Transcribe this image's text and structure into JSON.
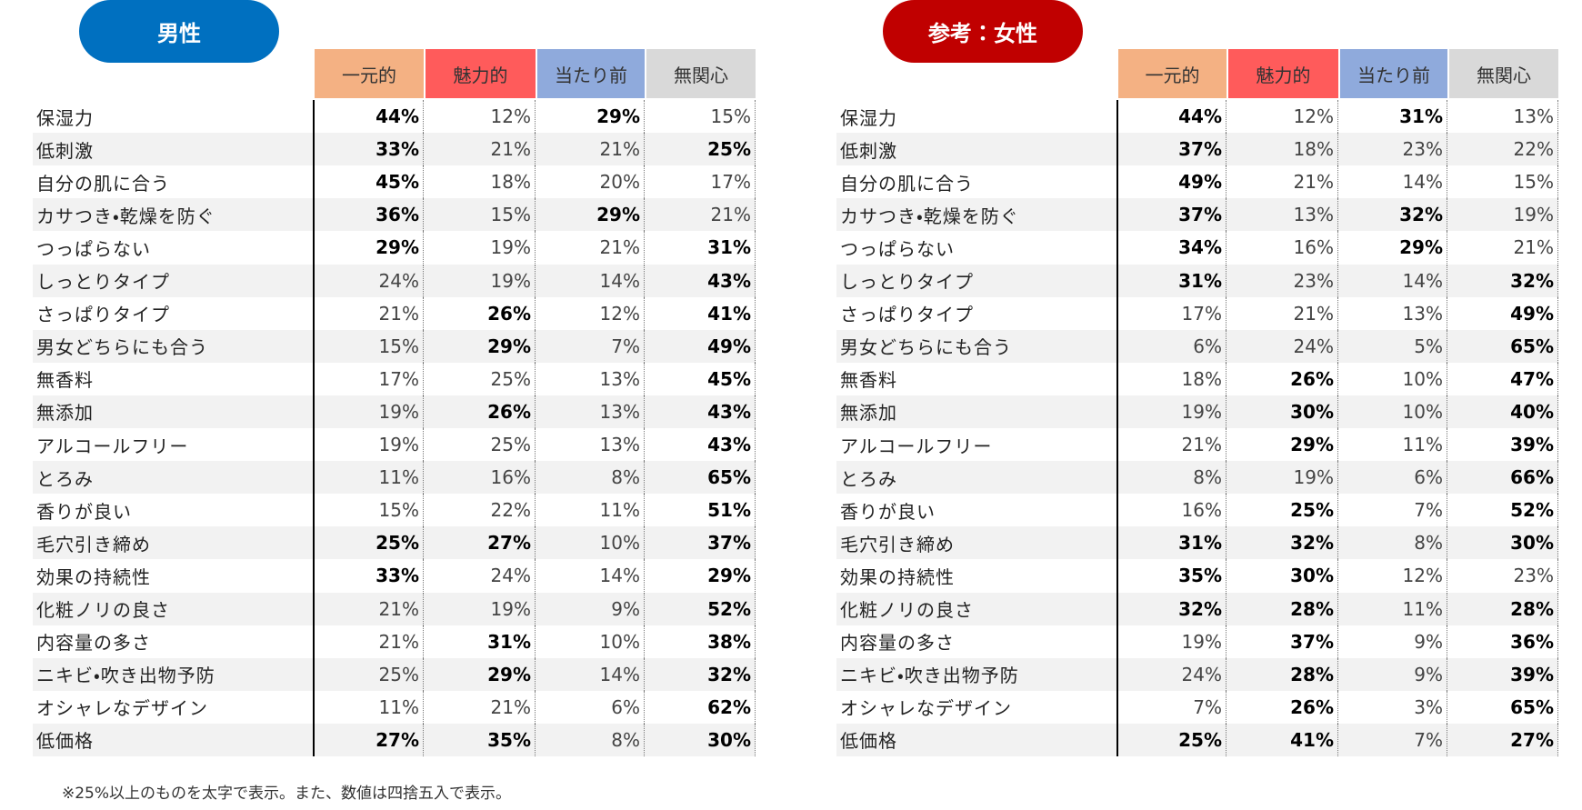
{
  "tables": [
    {
      "title": "男性",
      "title_color": "#0070c0",
      "headers": [
        "一元的",
        "魅力的",
        "当たり前",
        "無関心"
      ],
      "header_colors": [
        "#f4b183",
        "#ff5b5b",
        "#8faadc",
        "#d9d9d9"
      ],
      "rows": [
        {
          "label": "保湿力",
          "cells": [
            "44%",
            "12%",
            "29%",
            "15%"
          ],
          "bold": [
            true,
            false,
            true,
            false
          ]
        },
        {
          "label": "低刺激",
          "cells": [
            "33%",
            "21%",
            "21%",
            "25%"
          ],
          "bold": [
            true,
            false,
            false,
            true
          ]
        },
        {
          "label": "自分の肌に合う",
          "cells": [
            "45%",
            "18%",
            "20%",
            "17%"
          ],
          "bold": [
            true,
            false,
            false,
            false
          ]
        },
        {
          "label": "カサつき・乾燥を防ぐ",
          "cells": [
            "36%",
            "15%",
            "29%",
            "21%"
          ],
          "bold": [
            true,
            false,
            true,
            false
          ]
        },
        {
          "label": "つっぱらない",
          "cells": [
            "29%",
            "19%",
            "21%",
            "31%"
          ],
          "bold": [
            true,
            false,
            false,
            true
          ]
        },
        {
          "label": "しっとりタイプ",
          "cells": [
            "24%",
            "19%",
            "14%",
            "43%"
          ],
          "bold": [
            false,
            false,
            false,
            true
          ]
        },
        {
          "label": "さっぱりタイプ",
          "cells": [
            "21%",
            "26%",
            "12%",
            "41%"
          ],
          "bold": [
            false,
            true,
            false,
            true
          ]
        },
        {
          "label": "男女どちらにも合う",
          "cells": [
            "15%",
            "29%",
            "7%",
            "49%"
          ],
          "bold": [
            false,
            true,
            false,
            true
          ]
        },
        {
          "label": "無香料",
          "cells": [
            "17%",
            "25%",
            "13%",
            "45%"
          ],
          "bold": [
            false,
            false,
            false,
            true
          ]
        },
        {
          "label": "無添加",
          "cells": [
            "19%",
            "26%",
            "13%",
            "43%"
          ],
          "bold": [
            false,
            true,
            false,
            true
          ]
        },
        {
          "label": "アルコールフリー",
          "cells": [
            "19%",
            "25%",
            "13%",
            "43%"
          ],
          "bold": [
            false,
            false,
            false,
            true
          ]
        },
        {
          "label": "とろみ",
          "cells": [
            "11%",
            "16%",
            "8%",
            "65%"
          ],
          "bold": [
            false,
            false,
            false,
            true
          ]
        },
        {
          "label": "香りが良い",
          "cells": [
            "15%",
            "22%",
            "11%",
            "51%"
          ],
          "bold": [
            false,
            false,
            false,
            true
          ]
        },
        {
          "label": "毛穴引き締め",
          "cells": [
            "25%",
            "27%",
            "10%",
            "37%"
          ],
          "bold": [
            true,
            true,
            false,
            true
          ]
        },
        {
          "label": "効果の持続性",
          "cells": [
            "33%",
            "24%",
            "14%",
            "29%"
          ],
          "bold": [
            true,
            false,
            false,
            true
          ]
        },
        {
          "label": "化粧ノリの良さ",
          "cells": [
            "21%",
            "19%",
            "9%",
            "52%"
          ],
          "bold": [
            false,
            false,
            false,
            true
          ]
        },
        {
          "label": "内容量の多さ",
          "cells": [
            "21%",
            "31%",
            "10%",
            "38%"
          ],
          "bold": [
            false,
            true,
            false,
            true
          ]
        },
        {
          "label": "ニキビ・吹き出物予防",
          "cells": [
            "25%",
            "29%",
            "14%",
            "32%"
          ],
          "bold": [
            false,
            true,
            false,
            true
          ]
        },
        {
          "label": "オシャレなデザイン",
          "cells": [
            "11%",
            "21%",
            "6%",
            "62%"
          ],
          "bold": [
            false,
            false,
            false,
            true
          ]
        },
        {
          "label": "低価格",
          "cells": [
            "27%",
            "35%",
            "8%",
            "30%"
          ],
          "bold": [
            true,
            true,
            false,
            true
          ]
        }
      ]
    },
    {
      "title": "参考：女性",
      "title_color": "#c00000",
      "headers": [
        "一元的",
        "魅力的",
        "当たり前",
        "無関心"
      ],
      "header_colors": [
        "#f4b183",
        "#ff5b5b",
        "#8faadc",
        "#d9d9d9"
      ],
      "rows": [
        {
          "label": "保湿力",
          "cells": [
            "44%",
            "12%",
            "31%",
            "13%"
          ],
          "bold": [
            true,
            false,
            true,
            false
          ]
        },
        {
          "label": "低刺激",
          "cells": [
            "37%",
            "18%",
            "23%",
            "22%"
          ],
          "bold": [
            true,
            false,
            false,
            false
          ]
        },
        {
          "label": "自分の肌に合う",
          "cells": [
            "49%",
            "21%",
            "14%",
            "15%"
          ],
          "bold": [
            true,
            false,
            false,
            false
          ]
        },
        {
          "label": "カサつき・乾燥を防ぐ",
          "cells": [
            "37%",
            "13%",
            "32%",
            "19%"
          ],
          "bold": [
            true,
            false,
            true,
            false
          ]
        },
        {
          "label": "つっぱらない",
          "cells": [
            "34%",
            "16%",
            "29%",
            "21%"
          ],
          "bold": [
            true,
            false,
            true,
            false
          ]
        },
        {
          "label": "しっとりタイプ",
          "cells": [
            "31%",
            "23%",
            "14%",
            "32%"
          ],
          "bold": [
            true,
            false,
            false,
            true
          ]
        },
        {
          "label": "さっぱりタイプ",
          "cells": [
            "17%",
            "21%",
            "13%",
            "49%"
          ],
          "bold": [
            false,
            false,
            false,
            true
          ]
        },
        {
          "label": "男女どちらにも合う",
          "cells": [
            "6%",
            "24%",
            "5%",
            "65%"
          ],
          "bold": [
            false,
            false,
            false,
            true
          ]
        },
        {
          "label": "無香料",
          "cells": [
            "18%",
            "26%",
            "10%",
            "47%"
          ],
          "bold": [
            false,
            true,
            false,
            true
          ]
        },
        {
          "label": "無添加",
          "cells": [
            "19%",
            "30%",
            "10%",
            "40%"
          ],
          "bold": [
            false,
            true,
            false,
            true
          ]
        },
        {
          "label": "アルコールフリー",
          "cells": [
            "21%",
            "29%",
            "11%",
            "39%"
          ],
          "bold": [
            false,
            true,
            false,
            true
          ]
        },
        {
          "label": "とろみ",
          "cells": [
            "8%",
            "19%",
            "6%",
            "66%"
          ],
          "bold": [
            false,
            false,
            false,
            true
          ]
        },
        {
          "label": "香りが良い",
          "cells": [
            "16%",
            "25%",
            "7%",
            "52%"
          ],
          "bold": [
            false,
            true,
            false,
            true
          ]
        },
        {
          "label": "毛穴引き締め",
          "cells": [
            "31%",
            "32%",
            "8%",
            "30%"
          ],
          "bold": [
            true,
            true,
            false,
            true
          ]
        },
        {
          "label": "効果の持続性",
          "cells": [
            "35%",
            "30%",
            "12%",
            "23%"
          ],
          "bold": [
            true,
            true,
            false,
            false
          ]
        },
        {
          "label": "化粧ノリの良さ",
          "cells": [
            "32%",
            "28%",
            "11%",
            "28%"
          ],
          "bold": [
            true,
            true,
            false,
            true
          ]
        },
        {
          "label": "内容量の多さ",
          "cells": [
            "19%",
            "37%",
            "9%",
            "36%"
          ],
          "bold": [
            false,
            true,
            false,
            true
          ]
        },
        {
          "label": "ニキビ・吹き出物予防",
          "cells": [
            "24%",
            "28%",
            "9%",
            "39%"
          ],
          "bold": [
            false,
            true,
            false,
            true
          ]
        },
        {
          "label": "オシャレなデザイン",
          "cells": [
            "7%",
            "26%",
            "3%",
            "65%"
          ],
          "bold": [
            false,
            true,
            false,
            true
          ]
        },
        {
          "label": "低価格",
          "cells": [
            "25%",
            "41%",
            "7%",
            "27%"
          ],
          "bold": [
            true,
            true,
            false,
            true
          ]
        }
      ]
    }
  ],
  "note": "※25%以上のものを太字で表示。また、数値は四捨五入で表示。"
}
